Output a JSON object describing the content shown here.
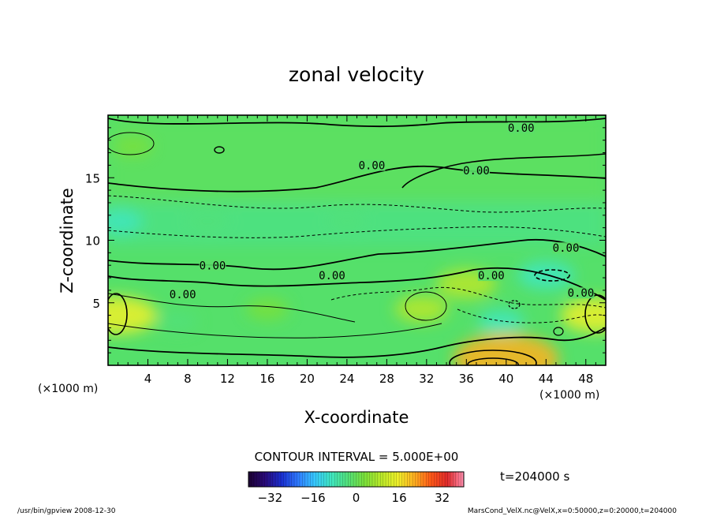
{
  "chart_data": {
    "type": "heatmap",
    "title": "zonal velocity",
    "xlabel": "X-coordinate",
    "ylabel": "Z-coordinate",
    "x_unit_left": "(×1000 m)",
    "x_unit_right": "(×1000 m)",
    "xlim": [
      0,
      50
    ],
    "ylim": [
      0,
      20
    ],
    "x_ticks": [
      4,
      8,
      12,
      16,
      20,
      24,
      28,
      32,
      36,
      40,
      44,
      48
    ],
    "y_ticks": [
      5,
      10,
      15
    ],
    "contour_interval_text": "CONTOUR INTERVAL = 5.000E+00",
    "time_text": "t=204000 s",
    "colorbar": {
      "range": [
        -40,
        40
      ],
      "ticks": [
        -32,
        -16,
        0,
        16,
        32
      ],
      "colors": [
        "#1b0030",
        "#2a0a7a",
        "#1a2fd0",
        "#2f7bff",
        "#36c8ff",
        "#3fe6c0",
        "#52e07a",
        "#7ae03a",
        "#b8e82a",
        "#eef02a",
        "#ffb020",
        "#ff5a18",
        "#e02a2a",
        "#ff8fb0"
      ]
    },
    "contour_labels": [
      {
        "text": "0.00",
        "x": 41.5,
        "z": 18.8
      },
      {
        "text": "0.00",
        "x": 26.5,
        "z": 15.8
      },
      {
        "text": "0.00",
        "x": 37.0,
        "z": 15.4
      },
      {
        "text": "0.00",
        "x": 10.5,
        "z": 7.8
      },
      {
        "text": "0.00",
        "x": 22.5,
        "z": 7.0
      },
      {
        "text": "0.00",
        "x": 46.0,
        "z": 9.2
      },
      {
        "text": "0.00",
        "x": 38.5,
        "z": 7.0
      },
      {
        "text": "0.00",
        "x": 7.5,
        "z": 5.5
      },
      {
        "text": "0.00",
        "x": 47.5,
        "z": 5.6
      }
    ],
    "features": [
      {
        "kind": "positive",
        "x": 1.0,
        "z": 4.0,
        "value": 16
      },
      {
        "kind": "positive",
        "x": 40.0,
        "z": 0.5,
        "value": 24
      },
      {
        "kind": "positive",
        "x": 49.0,
        "z": 4.0,
        "value": 14
      },
      {
        "kind": "positive",
        "x": 31.5,
        "z": 4.5,
        "value": 9
      },
      {
        "kind": "positive",
        "x": 36.0,
        "z": 6.5,
        "value": 11
      },
      {
        "kind": "positive",
        "x": 16.0,
        "z": 4.5,
        "value": 6
      },
      {
        "kind": "positive",
        "x": 2.5,
        "z": 17.5,
        "value": 5
      },
      {
        "kind": "negative",
        "x": 10.0,
        "z": 11.5,
        "value": -6
      },
      {
        "kind": "negative",
        "x": 24.0,
        "z": 11.5,
        "value": -5
      },
      {
        "kind": "negative",
        "x": 1.0,
        "z": 11.5,
        "value": -8
      },
      {
        "kind": "negative",
        "x": 44.0,
        "z": 7.2,
        "value": -10
      },
      {
        "kind": "negative",
        "x": 39.5,
        "z": 3.5,
        "value": -7
      },
      {
        "kind": "negative",
        "x": 7.0,
        "z": 3.5,
        "value": -5
      }
    ]
  },
  "footer": {
    "left": "/usr/bin/gpview  2008-12-30",
    "right": "MarsCond_VelX.nc@VelX,x=0:50000,z=0:20000,t=204000"
  },
  "colors": {
    "background": "#ffffff",
    "field_base": "#55e06a",
    "frame": "#000000"
  }
}
